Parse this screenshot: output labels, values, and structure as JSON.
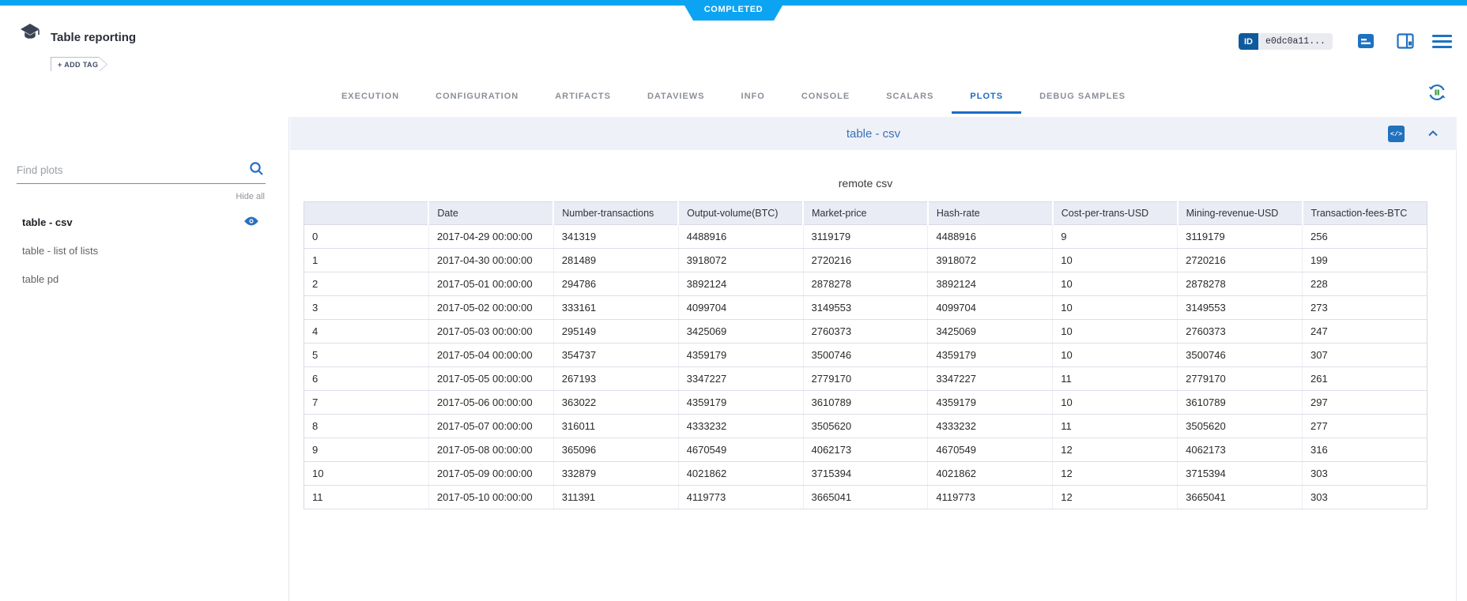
{
  "status": {
    "label": "COMPLETED"
  },
  "header": {
    "title": "Table reporting",
    "add_tag_label": "+ ADD TAG",
    "id_label": "ID",
    "id_value": "e0dc0a11..."
  },
  "tabs": [
    {
      "label": "EXECUTION",
      "active": false
    },
    {
      "label": "CONFIGURATION",
      "active": false
    },
    {
      "label": "ARTIFACTS",
      "active": false
    },
    {
      "label": "DATAVIEWS",
      "active": false
    },
    {
      "label": "INFO",
      "active": false
    },
    {
      "label": "CONSOLE",
      "active": false
    },
    {
      "label": "SCALARS",
      "active": false
    },
    {
      "label": "PLOTS",
      "active": true
    },
    {
      "label": "DEBUG SAMPLES",
      "active": false
    }
  ],
  "sidebar": {
    "search_placeholder": "Find plots",
    "hide_all_label": "Hide all",
    "items": [
      {
        "label": "table - csv",
        "selected": true,
        "visible": true
      },
      {
        "label": "table - list of lists",
        "selected": false,
        "visible": false
      },
      {
        "label": "table pd",
        "selected": false,
        "visible": false
      }
    ]
  },
  "main": {
    "panel_title": "table - csv",
    "code_button_label": "</>",
    "plot": {
      "title": "remote csv",
      "headers": [
        "",
        "Date",
        "Number-transactions",
        "Output-volume(BTC)",
        "Market-price",
        "Hash-rate",
        "Cost-per-trans-USD",
        "Mining-revenue-USD",
        "Transaction-fees-BTC"
      ],
      "rows": [
        [
          "0",
          "2017-04-29 00:00:00",
          "341319",
          "4488916",
          "3119179",
          "4488916",
          "9",
          "3119179",
          "256"
        ],
        [
          "1",
          "2017-04-30 00:00:00",
          "281489",
          "3918072",
          "2720216",
          "3918072",
          "10",
          "2720216",
          "199"
        ],
        [
          "2",
          "2017-05-01 00:00:00",
          "294786",
          "3892124",
          "2878278",
          "3892124",
          "10",
          "2878278",
          "228"
        ],
        [
          "3",
          "2017-05-02 00:00:00",
          "333161",
          "4099704",
          "3149553",
          "4099704",
          "10",
          "3149553",
          "273"
        ],
        [
          "4",
          "2017-05-03 00:00:00",
          "295149",
          "3425069",
          "2760373",
          "3425069",
          "10",
          "2760373",
          "247"
        ],
        [
          "5",
          "2017-05-04 00:00:00",
          "354737",
          "4359179",
          "3500746",
          "4359179",
          "10",
          "3500746",
          "307"
        ],
        [
          "6",
          "2017-05-05 00:00:00",
          "267193",
          "3347227",
          "2779170",
          "3347227",
          "11",
          "2779170",
          "261"
        ],
        [
          "7",
          "2017-05-06 00:00:00",
          "363022",
          "4359179",
          "3610789",
          "4359179",
          "10",
          "3610789",
          "297"
        ],
        [
          "8",
          "2017-05-07 00:00:00",
          "316011",
          "4333232",
          "3505620",
          "4333232",
          "11",
          "3505620",
          "277"
        ],
        [
          "9",
          "2017-05-08 00:00:00",
          "365096",
          "4670549",
          "4062173",
          "4670549",
          "12",
          "4062173",
          "316"
        ],
        [
          "10",
          "2017-05-09 00:00:00",
          "332879",
          "4021862",
          "3715394",
          "4021862",
          "12",
          "3715394",
          "303"
        ],
        [
          "11",
          "2017-05-10 00:00:00",
          "311391",
          "4119773",
          "3665041",
          "4119773",
          "12",
          "3665041",
          "303"
        ]
      ]
    }
  },
  "colors": {
    "status_blue": "#0ca4f2",
    "icon_blue": "#1f72c0",
    "active_tab_blue": "#1a6bc5",
    "panel_title_blue": "#3c70b5",
    "band_background": "#eef1f8",
    "table_header_background": "#e9ecf4",
    "id_badge_background": "#0e5a9d"
  }
}
